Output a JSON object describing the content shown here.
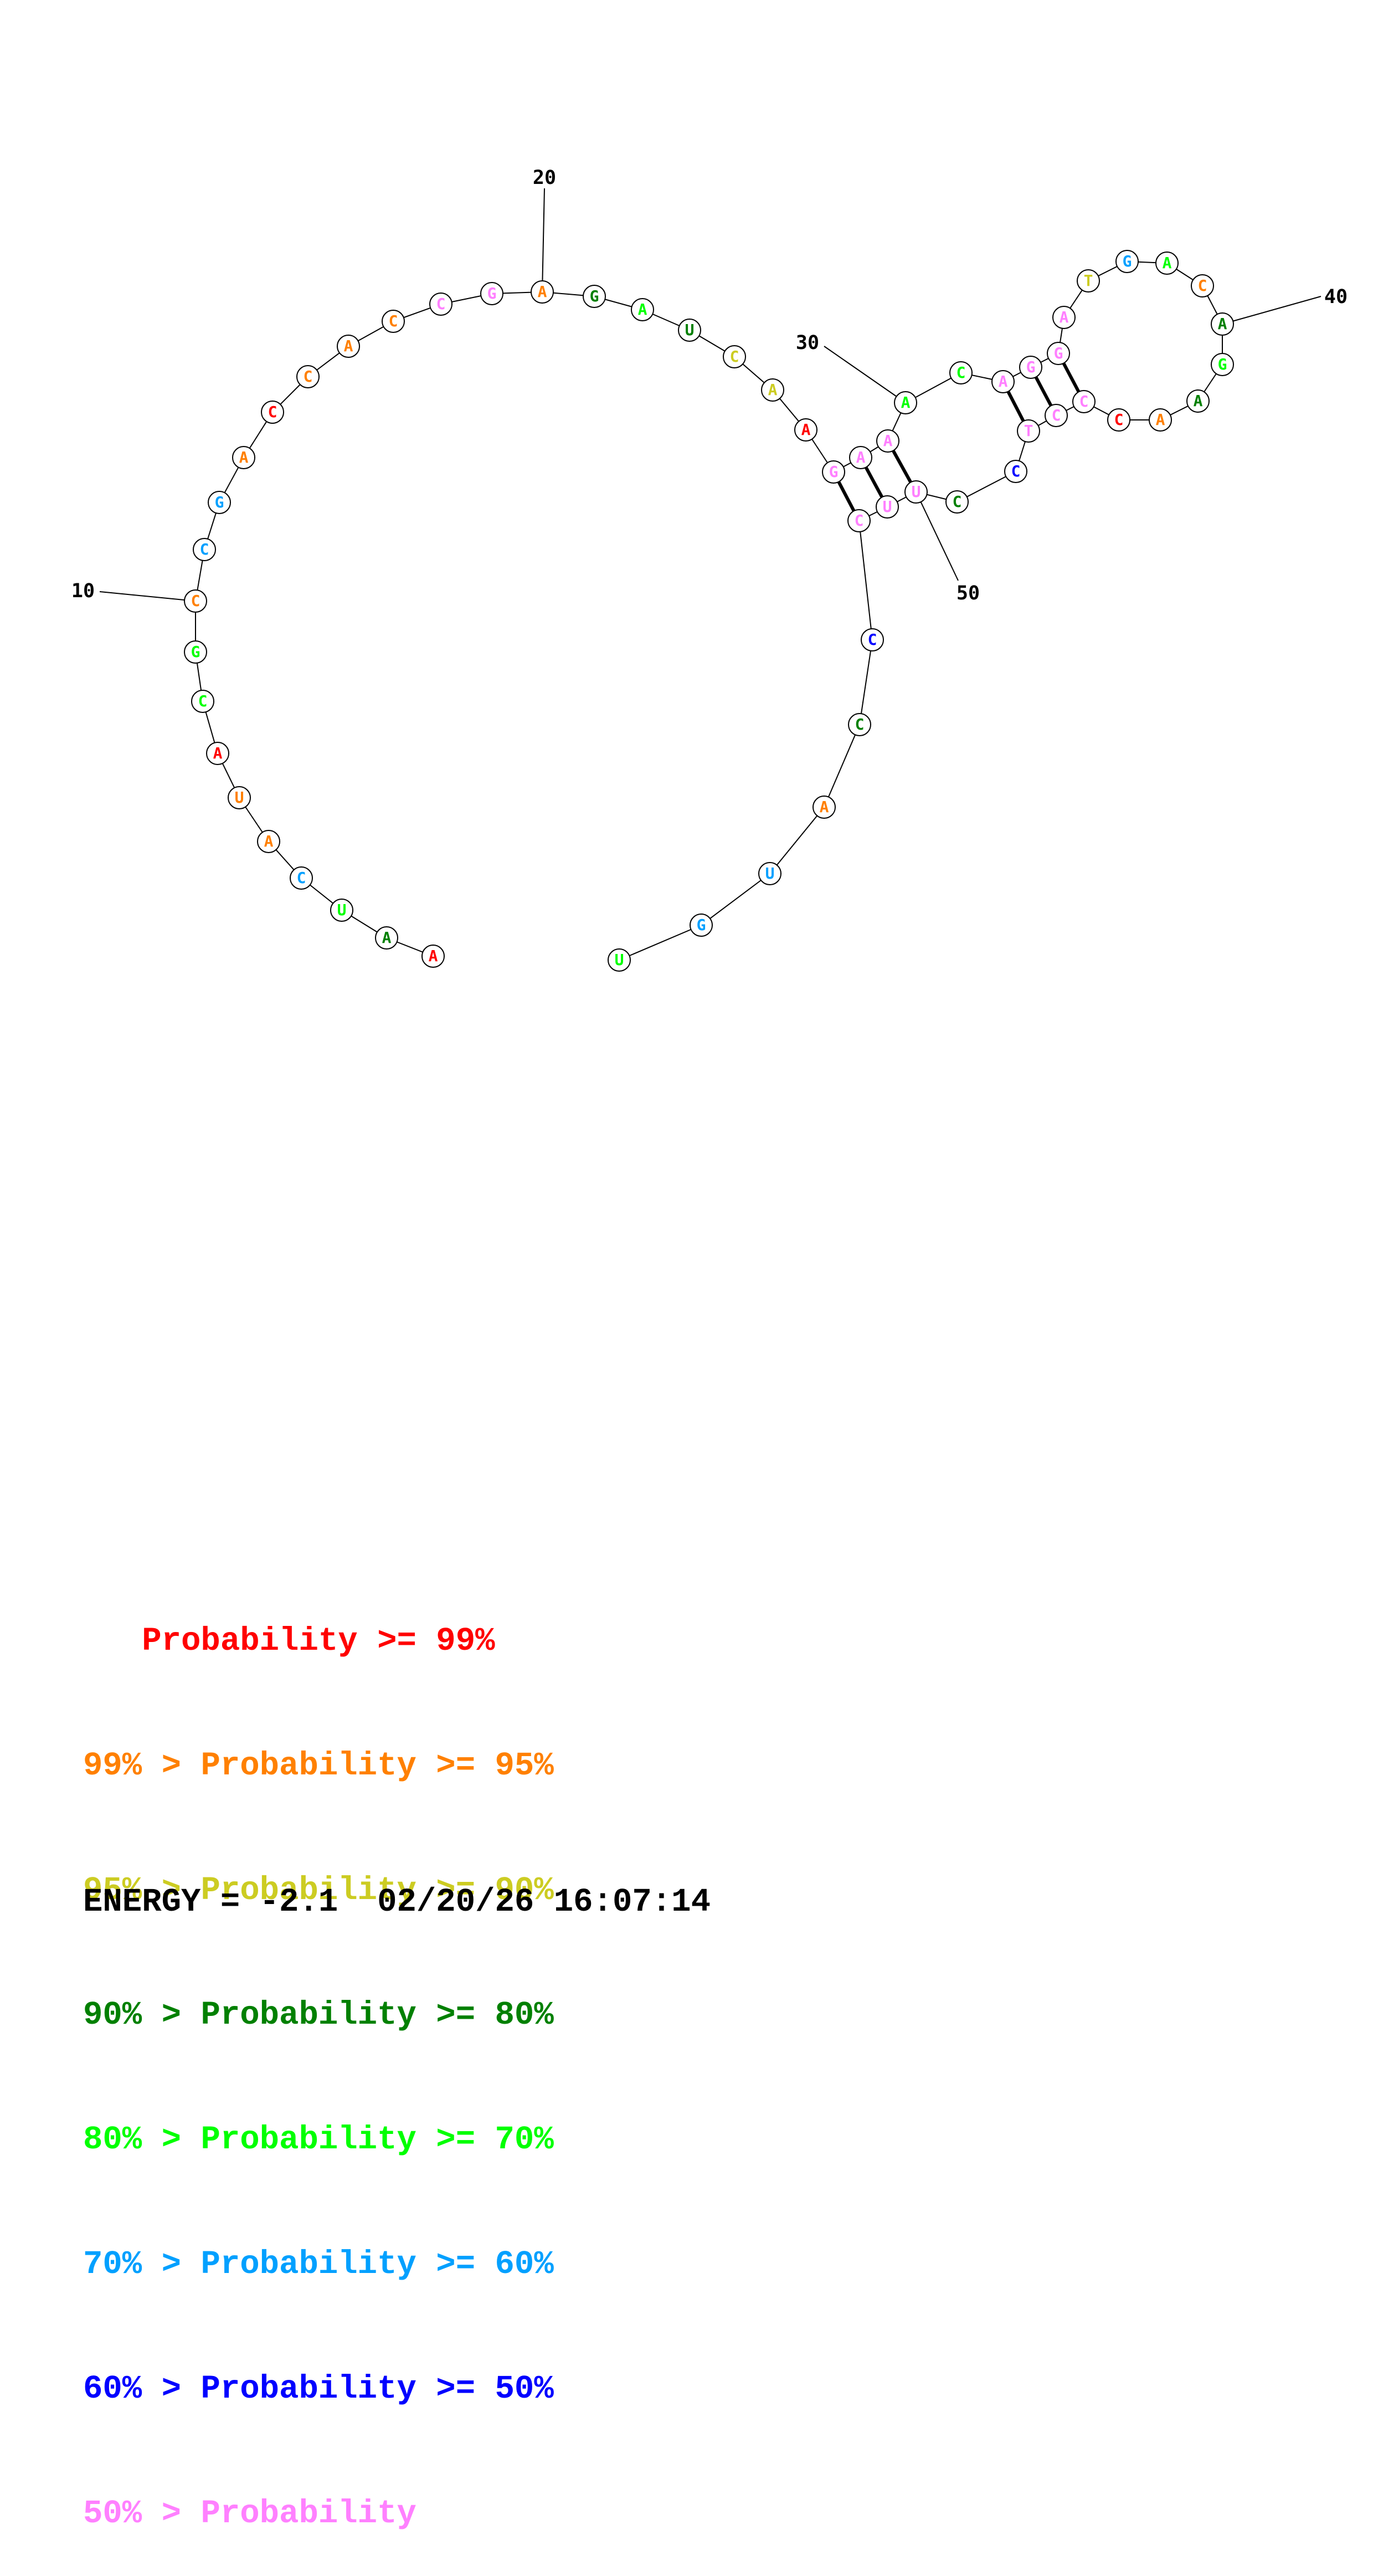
{
  "colors": {
    "red": "#ff0000",
    "orange": "#ff8000",
    "yellow": "#cccc22",
    "darkgreen": "#008000",
    "green": "#00ff00",
    "cyan": "#00a0ff",
    "blue": "#0000ff",
    "pink": "#ff80ff"
  },
  "nucleotides": [
    {
      "n": 1,
      "base": "A",
      "color": "red"
    },
    {
      "n": 2,
      "base": "A",
      "color": "darkgreen"
    },
    {
      "n": 3,
      "base": "U",
      "color": "green"
    },
    {
      "n": 4,
      "base": "C",
      "color": "cyan"
    },
    {
      "n": 5,
      "base": "A",
      "color": "orange"
    },
    {
      "n": 6,
      "base": "U",
      "color": "orange"
    },
    {
      "n": 7,
      "base": "A",
      "color": "red"
    },
    {
      "n": 8,
      "base": "C",
      "color": "green"
    },
    {
      "n": 9,
      "base": "G",
      "color": "green"
    },
    {
      "n": 10,
      "base": "C",
      "color": "orange"
    },
    {
      "n": 11,
      "base": "C",
      "color": "cyan"
    },
    {
      "n": 12,
      "base": "G",
      "color": "cyan"
    },
    {
      "n": 13,
      "base": "A",
      "color": "orange"
    },
    {
      "n": 14,
      "base": "C",
      "color": "red"
    },
    {
      "n": 15,
      "base": "C",
      "color": "orange"
    },
    {
      "n": 16,
      "base": "A",
      "color": "orange"
    },
    {
      "n": 17,
      "base": "C",
      "color": "orange"
    },
    {
      "n": 18,
      "base": "C",
      "color": "pink"
    },
    {
      "n": 19,
      "base": "G",
      "color": "pink"
    },
    {
      "n": 20,
      "base": "A",
      "color": "orange"
    },
    {
      "n": 21,
      "base": "G",
      "color": "darkgreen"
    },
    {
      "n": 22,
      "base": "A",
      "color": "green"
    },
    {
      "n": 23,
      "base": "U",
      "color": "darkgreen"
    },
    {
      "n": 24,
      "base": "C",
      "color": "yellow"
    },
    {
      "n": 25,
      "base": "A",
      "color": "yellow"
    },
    {
      "n": 26,
      "base": "A",
      "color": "red"
    },
    {
      "n": 27,
      "base": "G",
      "color": "pink"
    },
    {
      "n": 28,
      "base": "A",
      "color": "pink"
    },
    {
      "n": 29,
      "base": "A",
      "color": "pink"
    },
    {
      "n": 30,
      "base": "A",
      "color": "green"
    },
    {
      "n": 31,
      "base": "C",
      "color": "green"
    },
    {
      "n": 32,
      "base": "A",
      "color": "pink"
    },
    {
      "n": 33,
      "base": "G",
      "color": "pink"
    },
    {
      "n": 34,
      "base": "G",
      "color": "pink"
    },
    {
      "n": 35,
      "base": "A",
      "color": "pink"
    },
    {
      "n": 36,
      "base": "T",
      "color": "yellow"
    },
    {
      "n": 37,
      "base": "G",
      "color": "cyan"
    },
    {
      "n": 38,
      "base": "A",
      "color": "green"
    },
    {
      "n": 39,
      "base": "C",
      "color": "orange"
    },
    {
      "n": 40,
      "base": "A",
      "color": "darkgreen"
    },
    {
      "n": 41,
      "base": "G",
      "color": "green"
    },
    {
      "n": 42,
      "base": "A",
      "color": "darkgreen"
    },
    {
      "n": 43,
      "base": "A",
      "color": "orange"
    },
    {
      "n": 44,
      "base": "C",
      "color": "red"
    },
    {
      "n": 45,
      "base": "C",
      "color": "pink"
    },
    {
      "n": 46,
      "base": "C",
      "color": "pink"
    },
    {
      "n": 47,
      "base": "T",
      "color": "pink"
    },
    {
      "n": 48,
      "base": "C",
      "color": "blue"
    },
    {
      "n": 49,
      "base": "C",
      "color": "darkgreen"
    },
    {
      "n": 50,
      "base": "U",
      "color": "pink"
    },
    {
      "n": 51,
      "base": "U",
      "color": "pink"
    },
    {
      "n": 52,
      "base": "C",
      "color": "pink"
    },
    {
      "n": 53,
      "base": "C",
      "color": "blue"
    },
    {
      "n": 54,
      "base": "C",
      "color": "darkgreen"
    },
    {
      "n": 55,
      "base": "A",
      "color": "orange"
    },
    {
      "n": 56,
      "base": "U",
      "color": "cyan"
    },
    {
      "n": 57,
      "base": "G",
      "color": "cyan"
    },
    {
      "n": 58,
      "base": "U",
      "color": "green"
    }
  ],
  "pairs": [
    [
      27,
      52
    ],
    [
      28,
      51
    ],
    [
      29,
      50
    ],
    [
      32,
      47
    ],
    [
      33,
      46
    ],
    [
      34,
      45
    ]
  ],
  "position_ticks": [
    {
      "n": 10,
      "label": "10"
    },
    {
      "n": 20,
      "label": "20"
    },
    {
      "n": 30,
      "label": "30"
    },
    {
      "n": 40,
      "label": "40"
    },
    {
      "n": 50,
      "label": "50"
    }
  ],
  "legend": [
    {
      "prefix": "   ",
      "suffix": "Probability >= 99%",
      "color": "red"
    },
    {
      "prefix": "99% > ",
      "suffix": "Probability >= 95%",
      "color": "orange"
    },
    {
      "prefix": "95% > ",
      "suffix": "Probability >= 90%",
      "color": "yellow"
    },
    {
      "prefix": "90% > ",
      "suffix": "Probability >= 80%",
      "color": "darkgreen"
    },
    {
      "prefix": "80% > ",
      "suffix": "Probability >= 70%",
      "color": "green"
    },
    {
      "prefix": "70% > ",
      "suffix": "Probability >= 60%",
      "color": "cyan"
    },
    {
      "prefix": "60% > ",
      "suffix": "Probability >= 50%",
      "color": "blue"
    },
    {
      "prefix": "50% > ",
      "suffix": "Probability",
      "color": "pink"
    }
  ],
  "energy_text": "ENERGY = -2.1  02/20/26 16:07:14"
}
